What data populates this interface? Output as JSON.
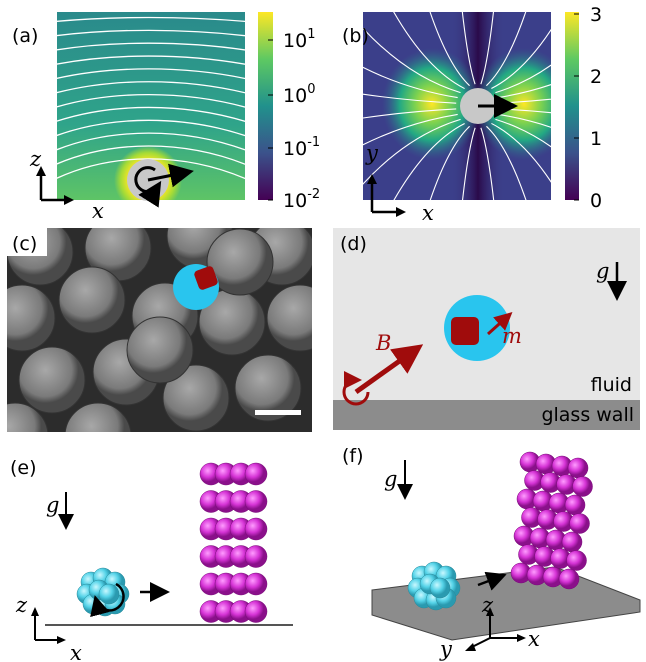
{
  "panels": {
    "a": {
      "label": "(a)",
      "axes": {
        "vertical": "z",
        "horizontal": "x"
      },
      "colorbar": [
        {
          "base": "10",
          "exp": "1"
        },
        {
          "base": "10",
          "exp": "0"
        },
        {
          "base": "10",
          "exp": "-1"
        },
        {
          "base": "10",
          "exp": "-2"
        }
      ]
    },
    "b": {
      "label": "(b)",
      "axes": {
        "vertical": "y",
        "horizontal": "x"
      },
      "colorbar": [
        3,
        2,
        1,
        0
      ]
    },
    "c": {
      "label": "(c)"
    },
    "d": {
      "label": "(d)",
      "field": "B",
      "moment": "m",
      "gravity": "g",
      "fluid": "fluid",
      "wall": "glass wall"
    },
    "e": {
      "label": "(e)",
      "gravity": "g",
      "axes": {
        "vertical": "z",
        "horizontal": "x"
      }
    },
    "f": {
      "label": "(f)",
      "gravity": "g",
      "axes": {
        "vertical": "z",
        "horizontal": "x",
        "depth": "y"
      }
    }
  }
}
